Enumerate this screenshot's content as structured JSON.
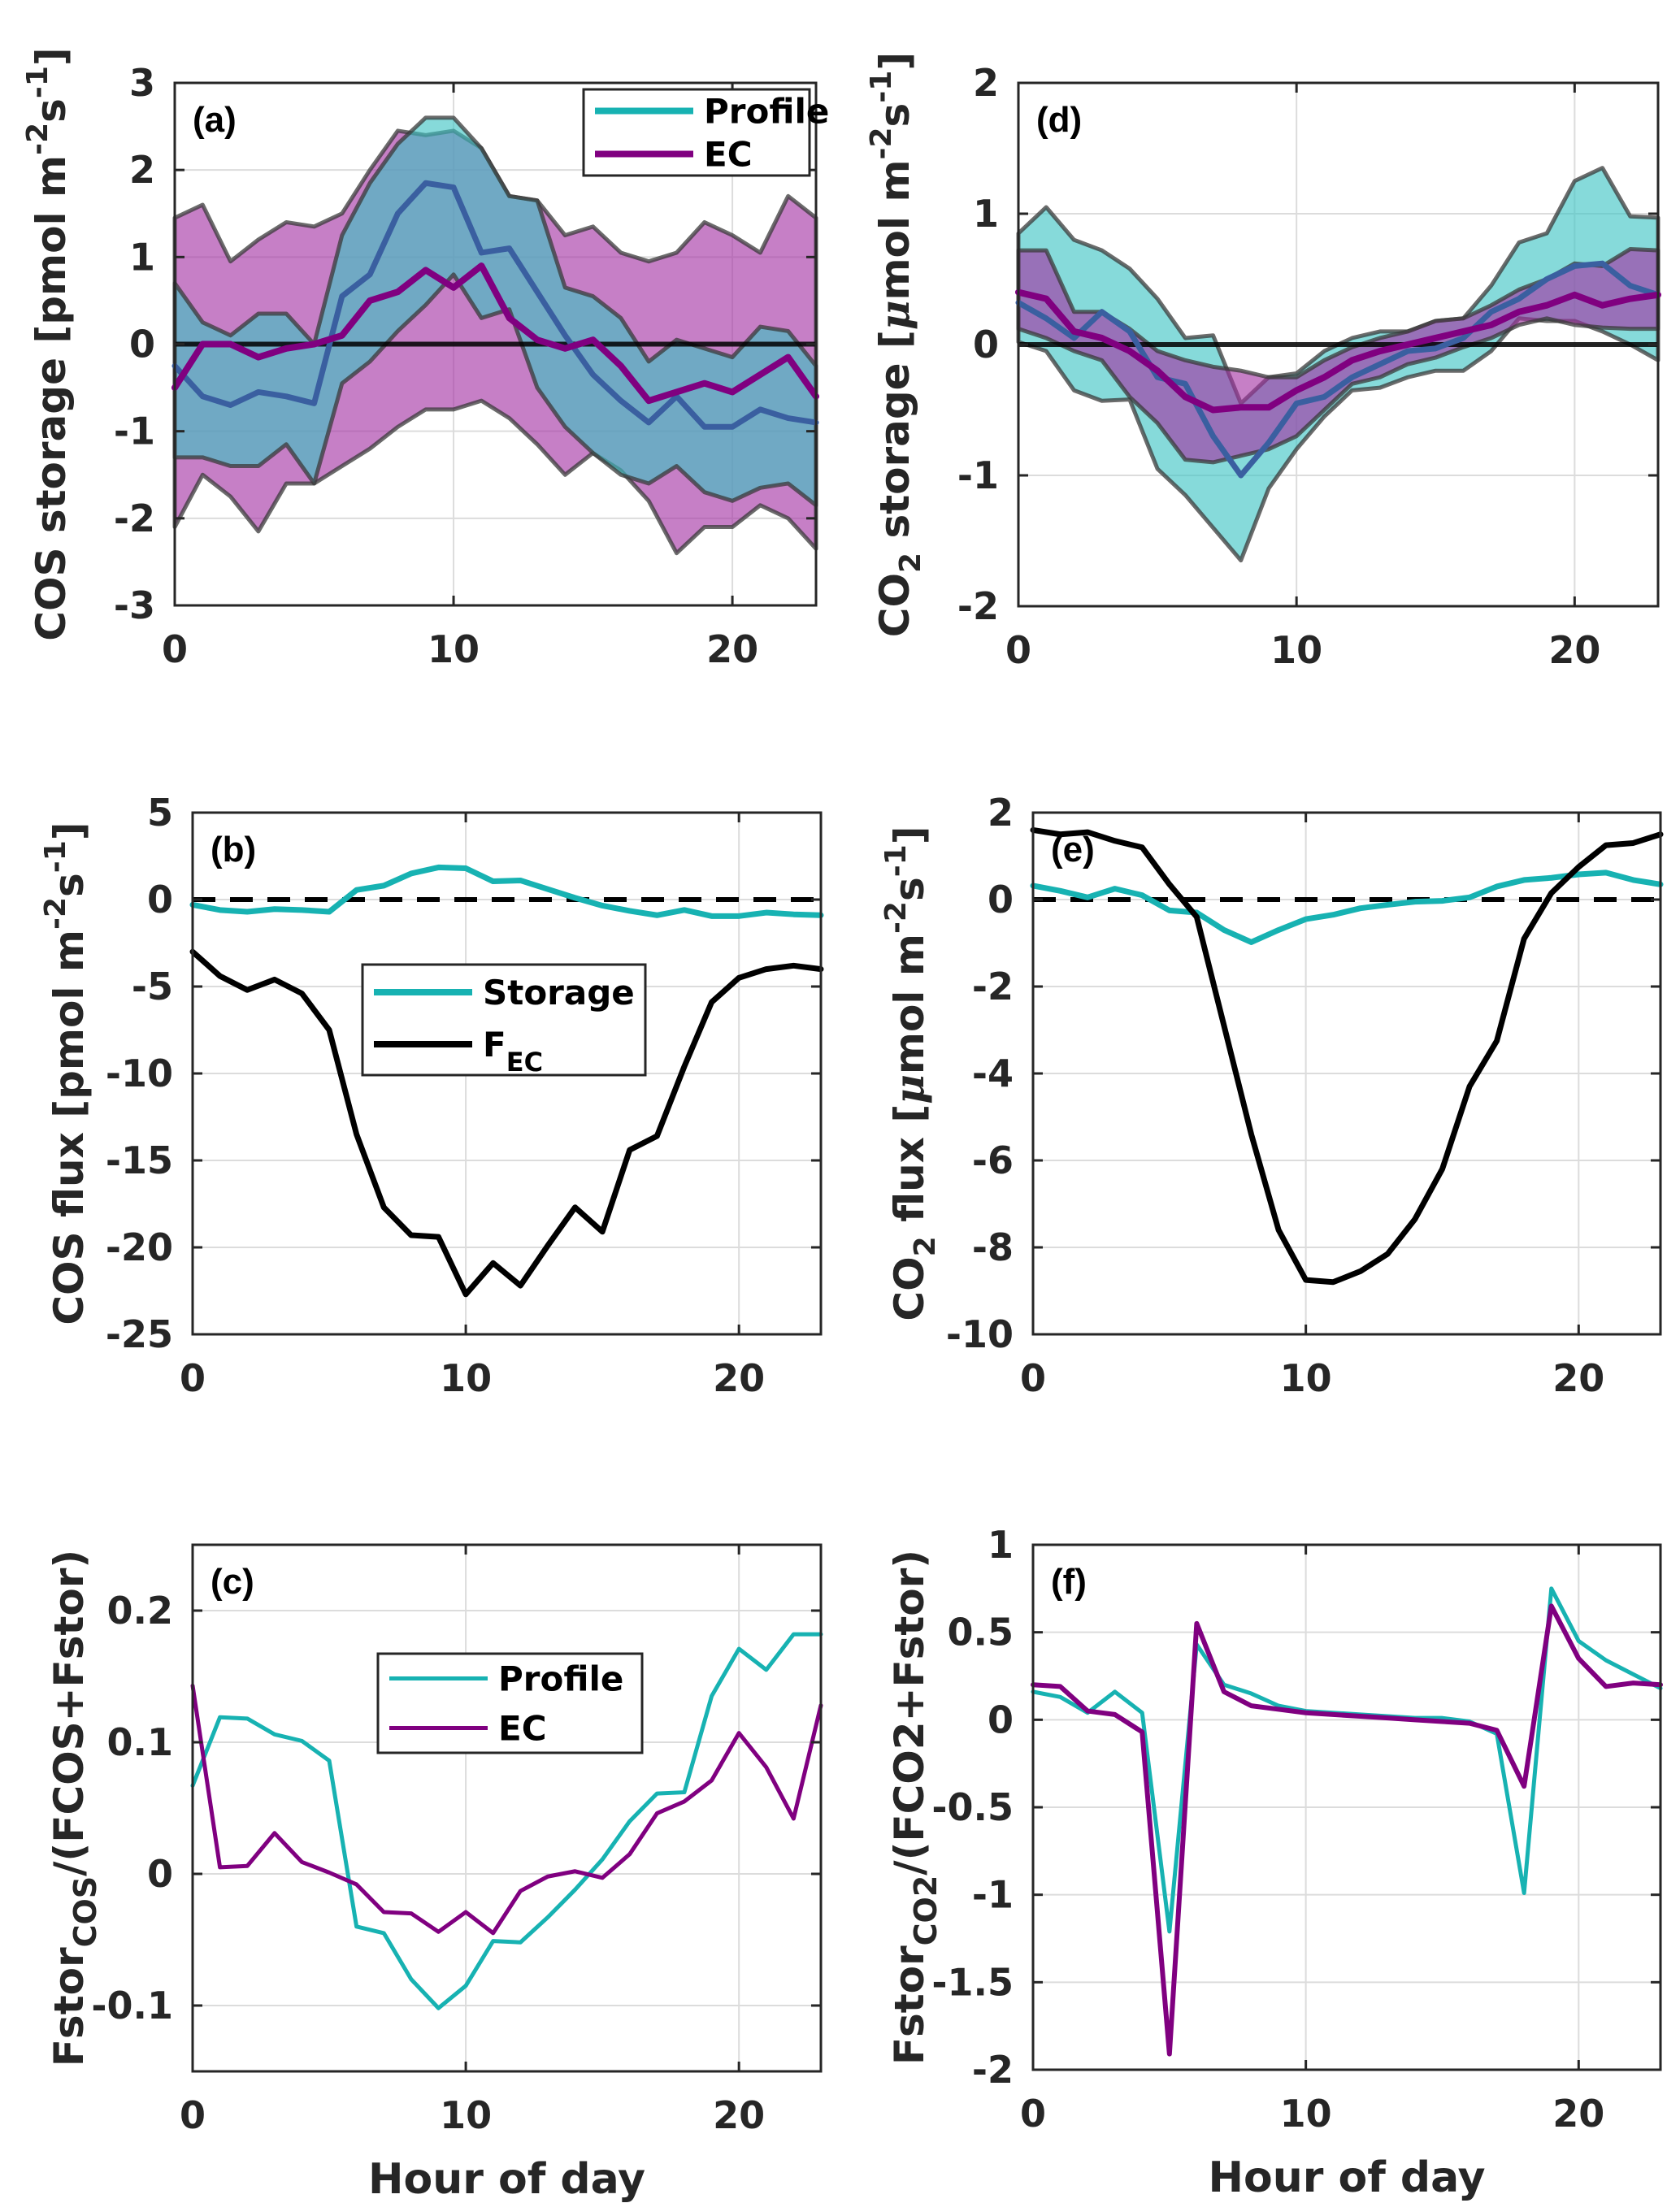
{
  "figure": {
    "x_label": "Hour of day",
    "colors": {
      "profile": "#17b2b2",
      "ec": "#800080",
      "fec": "#000000",
      "profile_fill": "#3cc4c4",
      "ec_fill": "#a330a3",
      "band_edge": "#3a3a3a",
      "grid": "#dcdcdc",
      "axis": "#262626"
    }
  },
  "chart_data": [
    {
      "id": "a",
      "type": "area",
      "panel_label": "(a)",
      "ylabel": "COS storage [pmol m^-2 s^-1]",
      "ylabel_parts": {
        "main": "COS storage [pmol m",
        "sup1": "-2",
        "mid": "s",
        "sup2": "-1",
        "end": "]"
      },
      "xlabel": "",
      "xlim": [
        0,
        23
      ],
      "ylim": [
        -3,
        3
      ],
      "xticks": [
        0,
        10,
        20
      ],
      "yticks": [
        -3,
        -2,
        -1,
        0,
        1,
        2,
        3
      ],
      "grid": true,
      "zero_line": "solid",
      "legend": {
        "placement": "top-right",
        "entries": [
          {
            "label": "Profile",
            "series": "profile"
          },
          {
            "label": "EC",
            "series": "ec"
          }
        ]
      },
      "x": [
        0,
        1,
        2,
        3,
        4,
        5,
        6,
        7,
        8,
        9,
        10,
        11,
        12,
        13,
        14,
        15,
        16,
        17,
        18,
        19,
        20,
        21,
        22,
        23
      ],
      "bands": [
        {
          "name": "EC range",
          "color_key": "ec_fill",
          "upper": [
            1.45,
            1.6,
            0.95,
            1.2,
            1.4,
            1.35,
            1.5,
            2.0,
            2.45,
            2.4,
            2.45,
            2.25,
            1.7,
            1.65,
            1.25,
            1.35,
            1.05,
            0.95,
            1.05,
            1.4,
            1.25,
            1.05,
            1.7,
            1.45
          ],
          "lower": [
            -2.1,
            -1.5,
            -1.75,
            -2.15,
            -1.6,
            -1.6,
            -1.4,
            -1.2,
            -0.95,
            -0.75,
            -0.75,
            -0.65,
            -0.85,
            -1.15,
            -1.5,
            -1.25,
            -1.45,
            -1.8,
            -2.4,
            -2.1,
            -2.1,
            -1.85,
            -2.0,
            -2.35
          ]
        },
        {
          "name": "Profile range",
          "color_key": "profile_fill",
          "upper": [
            0.7,
            0.25,
            0.1,
            0.35,
            0.35,
            0.0,
            1.25,
            1.85,
            2.3,
            2.6,
            2.6,
            2.25,
            1.7,
            1.65,
            0.65,
            0.55,
            0.3,
            -0.2,
            0.05,
            -0.05,
            -0.15,
            0.2,
            0.15,
            -0.25
          ],
          "lower": [
            -1.3,
            -1.3,
            -1.4,
            -1.4,
            -1.15,
            -1.6,
            -0.45,
            -0.2,
            0.15,
            0.45,
            0.8,
            0.3,
            0.4,
            -0.5,
            -0.95,
            -1.25,
            -1.5,
            -1.6,
            -1.4,
            -1.7,
            -1.8,
            -1.65,
            -1.6,
            -1.85
          ]
        }
      ],
      "series": [
        {
          "name": "Profile",
          "color_key": "profile_dark",
          "width": 7,
          "values": [
            -0.25,
            -0.6,
            -0.7,
            -0.55,
            -0.6,
            -0.68,
            0.55,
            0.8,
            1.5,
            1.85,
            1.8,
            1.05,
            1.1,
            0.6,
            0.1,
            -0.35,
            -0.65,
            -0.9,
            -0.6,
            -0.95,
            -0.95,
            -0.75,
            -0.85,
            -0.9
          ]
        },
        {
          "name": "EC",
          "color_key": "ec",
          "width": 8,
          "values": [
            -0.5,
            0,
            0,
            -0.15,
            -0.05,
            0,
            0.1,
            0.5,
            0.6,
            0.85,
            0.65,
            0.9,
            0.3,
            0.05,
            -0.05,
            0.05,
            -0.25,
            -0.65,
            -0.55,
            -0.45,
            -0.55,
            -0.35,
            -0.15,
            -0.6
          ]
        }
      ]
    },
    {
      "id": "b",
      "type": "line",
      "panel_label": "(b)",
      "ylabel": "COS flux [pmol m^-2 s^-1]",
      "ylabel_parts": {
        "main": "COS flux [pmol m",
        "sup1": "-2",
        "mid": "s",
        "sup2": "-1",
        "end": "]"
      },
      "xlabel": "",
      "xlim": [
        0,
        23
      ],
      "ylim": [
        -25,
        5
      ],
      "xticks": [
        0,
        10,
        20
      ],
      "yticks": [
        -25,
        -20,
        -15,
        -10,
        -5,
        0,
        5
      ],
      "grid": true,
      "zero_line": "dashed",
      "legend": {
        "placement": "center",
        "entries": [
          {
            "label": "Storage",
            "series": "profile"
          },
          {
            "label": "F",
            "sub": "EC",
            "series": "fec"
          }
        ]
      },
      "x": [
        0,
        1,
        2,
        3,
        4,
        5,
        6,
        7,
        8,
        9,
        10,
        11,
        12,
        13,
        14,
        15,
        16,
        17,
        18,
        19,
        20,
        21,
        22,
        23
      ],
      "series": [
        {
          "name": "Storage",
          "color_key": "profile",
          "width": 7,
          "values": [
            -0.3,
            -0.6,
            -0.7,
            -0.55,
            -0.6,
            -0.7,
            0.55,
            0.8,
            1.5,
            1.85,
            1.8,
            1.05,
            1.1,
            0.6,
            0.1,
            -0.35,
            -0.65,
            -0.9,
            -0.6,
            -0.95,
            -0.95,
            -0.75,
            -0.85,
            -0.9
          ]
        },
        {
          "name": "F_EC",
          "color_key": "fec",
          "width": 7,
          "values": [
            -3.0,
            -4.4,
            -5.2,
            -4.6,
            -5.4,
            -7.5,
            -13.5,
            -17.7,
            -19.3,
            -19.4,
            -22.7,
            -20.9,
            -22.2,
            -19.9,
            -17.7,
            -19.1,
            -14.4,
            -13.6,
            -9.6,
            -5.9,
            -4.5,
            -4.0,
            -3.8,
            -4.0
          ]
        }
      ]
    },
    {
      "id": "c",
      "type": "line",
      "panel_label": "(c)",
      "ylabel": "Fstor_COS/(FCOS+Fstor)",
      "ylabel_parts": {
        "main": "Fstor",
        "sub": "COS",
        "end": "/(FCOS+Fstor)"
      },
      "xlabel": "Hour of day",
      "xlim": [
        0,
        23
      ],
      "ylim": [
        -0.15,
        0.25
      ],
      "xticks": [
        0,
        10,
        20
      ],
      "yticks": [
        -0.1,
        0,
        0.1,
        0.2
      ],
      "ytick_labels": [
        "-0.1",
        "0",
        "0.1",
        "0.2"
      ],
      "grid": true,
      "zero_line": "none",
      "legend": {
        "placement": "center",
        "entries": [
          {
            "label": "Profile",
            "series": "profile"
          },
          {
            "label": "EC",
            "series": "ec"
          }
        ]
      },
      "x": [
        0,
        1,
        2,
        3,
        4,
        5,
        6,
        7,
        8,
        9,
        10,
        11,
        12,
        13,
        14,
        15,
        16,
        17,
        18,
        19,
        20,
        21,
        22,
        23
      ],
      "series": [
        {
          "name": "Profile",
          "color_key": "profile",
          "width": 5,
          "values": [
            0.067,
            0.119,
            0.118,
            0.106,
            0.101,
            0.086,
            -0.04,
            -0.045,
            -0.08,
            -0.102,
            -0.085,
            -0.051,
            -0.052,
            -0.033,
            -0.012,
            0.011,
            0.04,
            0.061,
            0.062,
            0.135,
            0.171,
            0.155,
            0.182,
            0.182
          ]
        },
        {
          "name": "EC",
          "color_key": "ec",
          "width": 5,
          "values": [
            0.143,
            0.005,
            0.006,
            0.031,
            0.009,
            0.001,
            -0.008,
            -0.029,
            -0.03,
            -0.044,
            -0.029,
            -0.045,
            -0.013,
            -0.002,
            0.002,
            -0.003,
            0.015,
            0.046,
            0.055,
            0.071,
            0.107,
            0.081,
            0.042,
            0.128
          ]
        }
      ]
    },
    {
      "id": "d",
      "type": "area",
      "panel_label": "(d)",
      "ylabel": "CO2 storage [μmol m^-2 s^-1]",
      "ylabel_parts": {
        "main": "CO",
        "sub": "2",
        "rest": " storage [",
        "mu": "μ",
        "main2": "mol m",
        "sup1": "-2",
        "mid": "s",
        "sup2": "-1",
        "end": "]"
      },
      "xlabel": "",
      "xlim": [
        0,
        23
      ],
      "ylim": [
        -2,
        2
      ],
      "xticks": [
        0,
        10,
        20
      ],
      "yticks": [
        -2,
        -1,
        0,
        1,
        2
      ],
      "grid": true,
      "zero_line": "solid",
      "x": [
        0,
        1,
        2,
        3,
        4,
        5,
        6,
        7,
        8,
        9,
        10,
        11,
        12,
        13,
        14,
        15,
        16,
        17,
        18,
        19,
        20,
        21,
        22,
        23
      ],
      "bands": [
        {
          "name": "Profile range",
          "color_key": "profile_fill",
          "upper": [
            0.85,
            1.05,
            0.8,
            0.72,
            0.58,
            0.35,
            0.05,
            0.07,
            -0.45,
            -0.25,
            -0.22,
            -0.05,
            0.05,
            0.1,
            0.1,
            0.18,
            0.2,
            0.45,
            0.78,
            0.85,
            1.25,
            1.35,
            0.98,
            0.97
          ],
          "lower": [
            0.02,
            -0.05,
            -0.35,
            -0.43,
            -0.42,
            -0.95,
            -1.15,
            -1.4,
            -1.65,
            -1.1,
            -0.8,
            -0.55,
            -0.35,
            -0.33,
            -0.25,
            -0.2,
            -0.2,
            -0.05,
            0.2,
            0.18,
            0.18,
            0.1,
            0.0,
            -0.12
          ]
        },
        {
          "name": "EC range",
          "color_key": "ec_fill",
          "upper": [
            0.72,
            0.72,
            0.25,
            0.25,
            0.12,
            -0.05,
            -0.12,
            -0.17,
            -0.2,
            -0.25,
            -0.25,
            -0.12,
            -0.02,
            0.05,
            0.1,
            0.18,
            0.2,
            0.3,
            0.42,
            0.5,
            0.62,
            0.6,
            0.73,
            0.72
          ],
          "lower": [
            0.12,
            0.05,
            -0.05,
            -0.12,
            -0.4,
            -0.6,
            -0.88,
            -0.9,
            -0.85,
            -0.8,
            -0.7,
            -0.5,
            -0.3,
            -0.25,
            -0.15,
            -0.1,
            -0.02,
            0.05,
            0.15,
            0.2,
            0.15,
            0.13,
            0.12,
            0.12
          ]
        }
      ],
      "series": [
        {
          "name": "Profile",
          "color_key": "profile_dark",
          "width": 7,
          "values": [
            0.32,
            0.2,
            0.05,
            0.25,
            0.1,
            -0.25,
            -0.3,
            -0.7,
            -1.0,
            -0.75,
            -0.45,
            -0.4,
            -0.25,
            -0.15,
            -0.05,
            -0.03,
            0.05,
            0.25,
            0.35,
            0.5,
            0.6,
            0.62,
            0.45,
            0.38
          ]
        },
        {
          "name": "EC",
          "color_key": "ec",
          "width": 8,
          "values": [
            0.4,
            0.35,
            0.1,
            0.05,
            -0.05,
            -0.2,
            -0.4,
            -0.5,
            -0.48,
            -0.48,
            -0.35,
            -0.25,
            -0.12,
            -0.05,
            0.0,
            0.05,
            0.1,
            0.15,
            0.25,
            0.3,
            0.38,
            0.3,
            0.35,
            0.38
          ]
        }
      ]
    },
    {
      "id": "e",
      "type": "line",
      "panel_label": "(e)",
      "ylabel": "CO2 flux [μmol m^-2 s^-1]",
      "ylabel_parts": {
        "main": "CO",
        "sub": "2",
        "rest": " flux [",
        "mu": "μ",
        "main2": "mol m",
        "sup1": "-2",
        "mid": "s",
        "sup2": "-1",
        "end": "]"
      },
      "xlabel": "",
      "xlim": [
        0,
        23
      ],
      "ylim": [
        -10,
        2
      ],
      "xticks": [
        0,
        10,
        20
      ],
      "yticks": [
        -10,
        -8,
        -6,
        -4,
        -2,
        0,
        2
      ],
      "grid": true,
      "zero_line": "dashed",
      "x": [
        0,
        1,
        2,
        3,
        4,
        5,
        6,
        7,
        8,
        9,
        10,
        11,
        12,
        13,
        14,
        15,
        16,
        17,
        18,
        19,
        20,
        21,
        22,
        23
      ],
      "series": [
        {
          "name": "Storage",
          "color_key": "profile",
          "width": 7,
          "values": [
            0.32,
            0.2,
            0.05,
            0.25,
            0.1,
            -0.25,
            -0.3,
            -0.7,
            -0.98,
            -0.7,
            -0.45,
            -0.35,
            -0.2,
            -0.12,
            -0.05,
            -0.03,
            0.05,
            0.3,
            0.45,
            0.5,
            0.58,
            0.62,
            0.45,
            0.35
          ]
        },
        {
          "name": "F_EC",
          "color_key": "fec",
          "width": 7,
          "values": [
            1.6,
            1.5,
            1.55,
            1.35,
            1.2,
            0.35,
            -0.4,
            -2.9,
            -5.4,
            -7.6,
            -8.75,
            -8.8,
            -8.55,
            -8.15,
            -7.35,
            -6.2,
            -4.3,
            -3.25,
            -0.9,
            0.15,
            0.75,
            1.25,
            1.3,
            1.5
          ]
        }
      ]
    },
    {
      "id": "f",
      "type": "line",
      "panel_label": "(f)",
      "ylabel": "Fstor_CO2/(FCO2+Fstor)",
      "ylabel_parts": {
        "main": "Fstor",
        "sub": "CO2",
        "end": "/(FCO2+Fstor)"
      },
      "xlabel": "Hour of day",
      "xlim": [
        0,
        23
      ],
      "ylim": [
        -2,
        1
      ],
      "xticks": [
        0,
        10,
        20
      ],
      "yticks": [
        -2,
        -1.5,
        -1,
        -0.5,
        0,
        0.5,
        1
      ],
      "ytick_labels": [
        "-2",
        "-1.5",
        "-1",
        "-0.5",
        "0",
        "0.5",
        "1"
      ],
      "grid": true,
      "zero_line": "none",
      "x": [
        0,
        1,
        2,
        3,
        4,
        5,
        6,
        7,
        8,
        9,
        10,
        11,
        12,
        13,
        14,
        15,
        16,
        17,
        18,
        19,
        20,
        21,
        22,
        23
      ],
      "series": [
        {
          "name": "Profile",
          "color_key": "profile",
          "width": 5,
          "values": [
            0.16,
            0.13,
            0.04,
            0.16,
            0.04,
            -1.21,
            0.43,
            0.2,
            0.15,
            0.08,
            0.05,
            0.04,
            0.03,
            0.02,
            0.01,
            0.01,
            -0.01,
            -0.08,
            -0.99,
            0.75,
            0.45,
            0.34,
            0.26,
            0.18
          ]
        },
        {
          "name": "EC",
          "color_key": "ec",
          "width": 6,
          "values": [
            0.2,
            0.19,
            0.05,
            0.03,
            -0.07,
            -1.91,
            0.55,
            0.16,
            0.08,
            0.06,
            0.04,
            0.03,
            0.02,
            0.01,
            0.0,
            -0.01,
            -0.02,
            -0.06,
            -0.38,
            0.65,
            0.35,
            0.19,
            0.21,
            0.2
          ]
        }
      ]
    }
  ]
}
